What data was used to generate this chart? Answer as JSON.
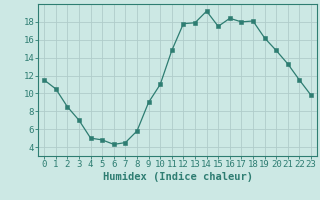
{
  "x": [
    0,
    1,
    2,
    3,
    4,
    5,
    6,
    7,
    8,
    9,
    10,
    11,
    12,
    13,
    14,
    15,
    16,
    17,
    18,
    19,
    20,
    21,
    22,
    23
  ],
  "y": [
    11.5,
    10.5,
    8.5,
    7.0,
    5.0,
    4.8,
    4.3,
    4.5,
    5.8,
    9.0,
    11.0,
    14.8,
    17.8,
    17.9,
    19.2,
    17.5,
    18.4,
    18.0,
    18.1,
    16.2,
    14.8,
    13.3,
    11.5,
    9.8
  ],
  "bg_color": "#cce8e4",
  "grid_color": "#b0ccca",
  "line_color": "#2e7d72",
  "marker_color": "#2e7d72",
  "xlabel": "Humidex (Indice chaleur)",
  "ylim": [
    3,
    20
  ],
  "xlim": [
    -0.5,
    23.5
  ],
  "yticks": [
    4,
    6,
    8,
    10,
    12,
    14,
    16,
    18
  ],
  "xticks": [
    0,
    1,
    2,
    3,
    4,
    5,
    6,
    7,
    8,
    9,
    10,
    11,
    12,
    13,
    14,
    15,
    16,
    17,
    18,
    19,
    20,
    21,
    22,
    23
  ],
  "xlabel_fontsize": 7.5,
  "tick_fontsize": 6.5
}
